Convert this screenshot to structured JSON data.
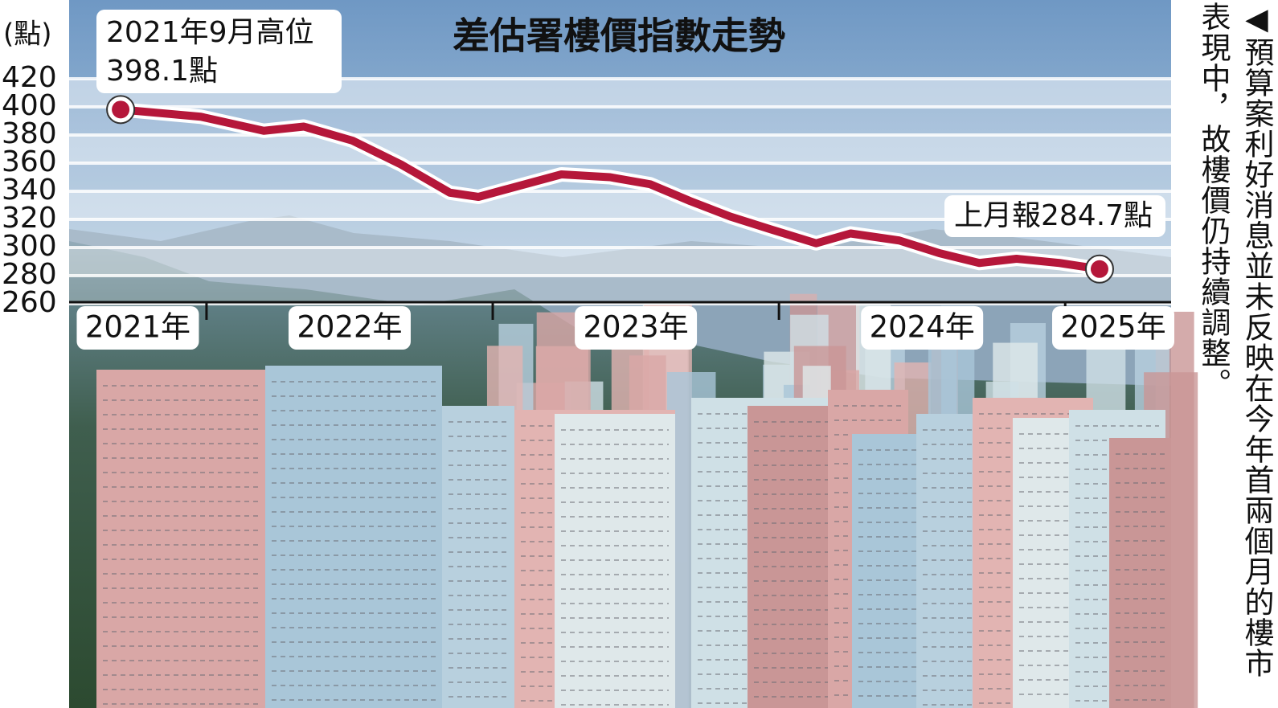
{
  "chart_data": {
    "type": "line",
    "title": "差估署樓價指數走勢",
    "y_unit": "(點)",
    "x": [
      2021.7,
      2021.98,
      2022.2,
      2022.34,
      2022.51,
      2022.68,
      2022.85,
      2022.95,
      2023.04,
      2023.24,
      2023.41,
      2023.55,
      2023.69,
      2023.83,
      2023.97,
      2024.13,
      2024.25,
      2024.42,
      2024.56,
      2024.7,
      2024.83,
      2024.98,
      2025.12
    ],
    "series": [
      {
        "name": "差估署樓價指數",
        "color": "#b5173a",
        "values": [
          398.1,
          393,
          383,
          386,
          376,
          359,
          339,
          336,
          341,
          352,
          350,
          345,
          333,
          322,
          313,
          303,
          310,
          305,
          296,
          289,
          292,
          289,
          284.7
        ]
      }
    ],
    "xlim": [
      2021.52,
      2025.37
    ],
    "xticks": [
      {
        "value": 2021,
        "label": "2021年"
      },
      {
        "value": 2022,
        "label": "2022年"
      },
      {
        "value": 2023,
        "label": "2023年"
      },
      {
        "value": 2024,
        "label": "2024年"
      },
      {
        "value": 2025,
        "label": "2025年"
      }
    ],
    "ylim": [
      260,
      420
    ],
    "yticks": [
      260,
      280,
      300,
      320,
      340,
      360,
      380,
      400,
      420
    ],
    "grid": true,
    "annotations": [
      "2021年9月高位",
      "398.1點",
      "上月報284.7點"
    ],
    "caption": [
      "◀預算案利好消息並未反映在今年首兩個月的樓市",
      "表現中，故樓價仍持續調整。"
    ]
  }
}
